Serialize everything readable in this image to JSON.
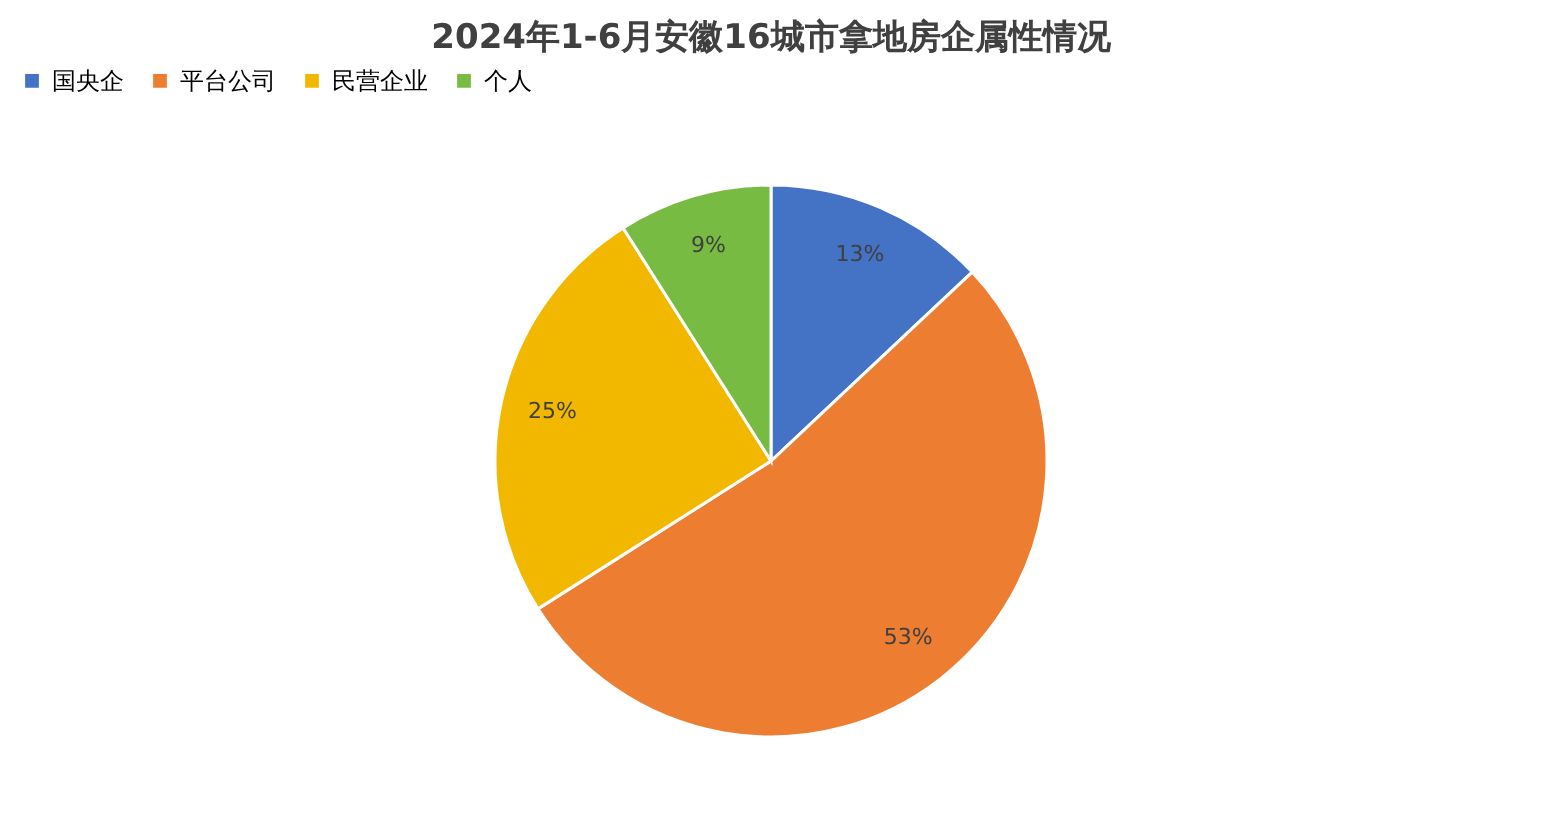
{
  "chart_data": {
    "type": "pie",
    "title": "2024年1-6月安徽16城市拿地房企属性情况",
    "categories": [
      "国央企",
      "平台公司",
      "民营企业",
      "个人"
    ],
    "values": [
      13,
      53,
      25,
      9
    ],
    "colors": [
      "#4472c4",
      "#ed7d31",
      "#f2b800",
      "#78bb43"
    ],
    "value_labels": [
      "13%",
      "53%",
      "25%",
      "9%"
    ],
    "legend": "top"
  }
}
